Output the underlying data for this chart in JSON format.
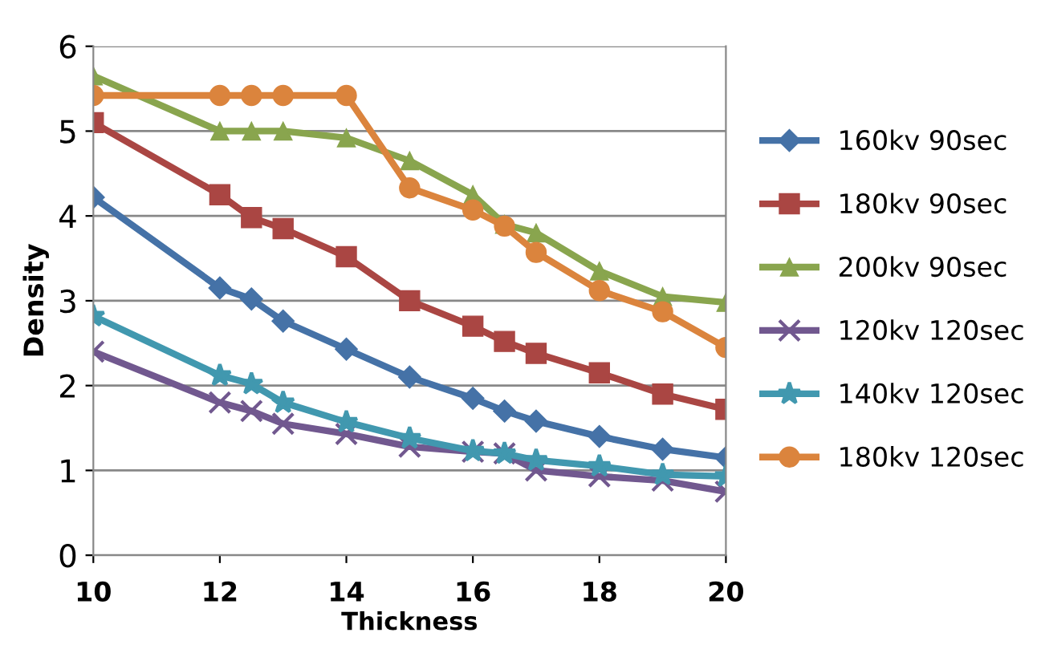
{
  "chart_data": {
    "type": "line",
    "xlabel": "Thickness",
    "ylabel": "Density",
    "x": [
      10,
      12,
      12.5,
      13,
      14,
      15,
      16,
      16.5,
      17,
      18,
      19,
      20
    ],
    "xlim": [
      10,
      20
    ],
    "xticks": [
      10,
      12,
      14,
      16,
      18,
      20
    ],
    "ylim": [
      0,
      6
    ],
    "yticks": [
      0,
      1,
      2,
      3,
      4,
      5,
      6
    ],
    "grid": "y",
    "legend": "right",
    "series": [
      {
        "name": "160kv 90sec",
        "color": "#4572a7",
        "marker": "diamond",
        "values": [
          4.22,
          3.15,
          3.02,
          2.76,
          2.43,
          2.1,
          1.85,
          1.7,
          1.58,
          1.4,
          1.25,
          1.15
        ]
      },
      {
        "name": "180kv 90sec",
        "color": "#aa4643",
        "marker": "square",
        "values": [
          5.1,
          4.25,
          3.98,
          3.85,
          3.52,
          3.0,
          2.7,
          2.52,
          2.38,
          2.15,
          1.9,
          1.72
        ]
      },
      {
        "name": "200kv 90sec",
        "color": "#89a54e",
        "marker": "triangle",
        "values": [
          5.65,
          5.0,
          5.0,
          5.0,
          4.92,
          4.65,
          4.25,
          3.9,
          3.8,
          3.35,
          3.05,
          2.98
        ]
      },
      {
        "name": "120kv 120sec",
        "color": "#71588f",
        "marker": "cross",
        "values": [
          2.4,
          1.8,
          1.7,
          1.55,
          1.43,
          1.28,
          1.22,
          1.2,
          1.0,
          0.93,
          0.88,
          0.75
        ]
      },
      {
        "name": "140kv 120sec",
        "color": "#4198af",
        "marker": "star",
        "values": [
          2.82,
          2.12,
          2.02,
          1.8,
          1.57,
          1.38,
          1.23,
          1.2,
          1.12,
          1.05,
          0.95,
          0.93
        ]
      },
      {
        "name": "180kv 120sec",
        "color": "#db843d",
        "marker": "circle",
        "values": [
          5.42,
          5.42,
          5.42,
          5.42,
          5.42,
          4.33,
          4.07,
          3.88,
          3.57,
          3.12,
          2.87,
          2.45
        ]
      }
    ]
  }
}
